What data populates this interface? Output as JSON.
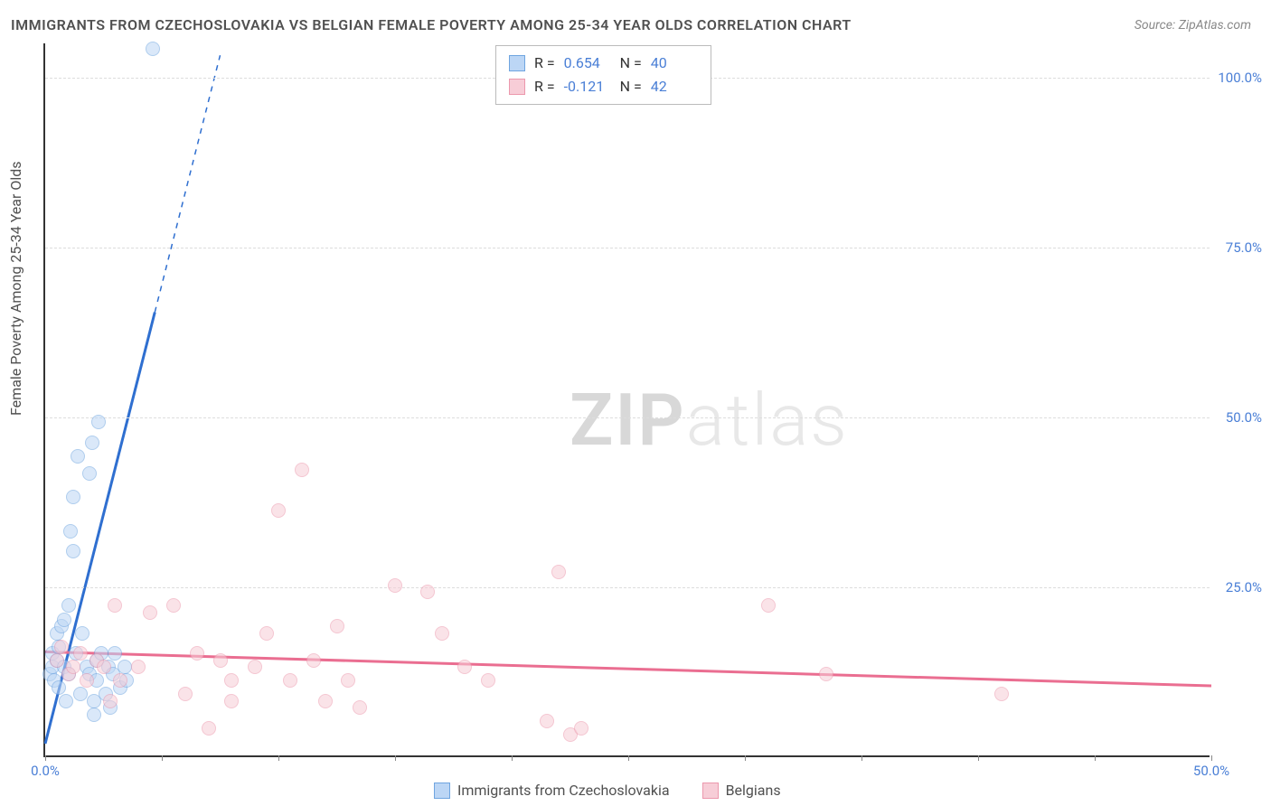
{
  "title": "IMMIGRANTS FROM CZECHOSLOVAKIA VS BELGIAN FEMALE POVERTY AMONG 25-34 YEAR OLDS CORRELATION CHART",
  "source": "Source: ZipAtlas.com",
  "y_axis_label": "Female Poverty Among 25-34 Year Olds",
  "watermark": {
    "bold": "ZIP",
    "rest": "atlas"
  },
  "chart": {
    "type": "scatter",
    "xlim": [
      0,
      50
    ],
    "ylim": [
      0,
      105
    ],
    "x_ticks": [
      0,
      5,
      10,
      15,
      20,
      25,
      30,
      35,
      40,
      45,
      50
    ],
    "x_tick_labels": {
      "0": "0.0%",
      "50": "50.0%"
    },
    "y_ticks": [
      25,
      50,
      75,
      100
    ],
    "y_tick_labels": [
      "25.0%",
      "50.0%",
      "75.0%",
      "100.0%"
    ],
    "grid_color": "#dddddd",
    "axis_color": "#333333",
    "background_color": "#ffffff",
    "tick_label_color": "#4a7fd6",
    "tick_fontsize": 15,
    "title_fontsize": 16,
    "label_fontsize": 16,
    "marker_radius": 8,
    "marker_opacity": 0.55,
    "series": [
      {
        "name": "Immigrants from Czechoslovakia",
        "color_fill": "#bcd6f5",
        "color_stroke": "#6fa5e0",
        "trend": {
          "slope": 13.5,
          "intercept": 2.0,
          "solid_xmax": 4.7,
          "dash_xmax": 7.5,
          "line_width": 3,
          "color": "#2f6fd0"
        },
        "points": [
          [
            0.2,
            12
          ],
          [
            0.3,
            13
          ],
          [
            0.3,
            15
          ],
          [
            0.4,
            11
          ],
          [
            0.5,
            14
          ],
          [
            0.5,
            18
          ],
          [
            0.6,
            10
          ],
          [
            0.6,
            16
          ],
          [
            0.7,
            19
          ],
          [
            0.8,
            13
          ],
          [
            0.8,
            20
          ],
          [
            0.9,
            8
          ],
          [
            1.0,
            22
          ],
          [
            1.0,
            12
          ],
          [
            1.1,
            33
          ],
          [
            1.2,
            30
          ],
          [
            1.2,
            38
          ],
          [
            1.3,
            15
          ],
          [
            1.4,
            44
          ],
          [
            1.5,
            9
          ],
          [
            1.6,
            18
          ],
          [
            1.8,
            13
          ],
          [
            1.9,
            41.5
          ],
          [
            1.9,
            12
          ],
          [
            2.0,
            46
          ],
          [
            2.1,
            8
          ],
          [
            2.1,
            6
          ],
          [
            2.2,
            14
          ],
          [
            2.2,
            11
          ],
          [
            2.3,
            49
          ],
          [
            2.4,
            15
          ],
          [
            2.6,
            9
          ],
          [
            2.7,
            13
          ],
          [
            2.8,
            7
          ],
          [
            2.9,
            12
          ],
          [
            3.0,
            15
          ],
          [
            3.2,
            10
          ],
          [
            3.4,
            13
          ],
          [
            3.5,
            11
          ],
          [
            4.6,
            104
          ]
        ]
      },
      {
        "name": "Belgians",
        "color_fill": "#f7cdd7",
        "color_stroke": "#ec98ad",
        "trend": {
          "slope": -0.1,
          "intercept": 15.5,
          "solid_xmax": 50,
          "dash_xmax": 50,
          "line_width": 3,
          "color": "#ea6e91"
        },
        "points": [
          [
            0.5,
            14
          ],
          [
            0.7,
            16
          ],
          [
            1.0,
            12
          ],
          [
            1.2,
            13
          ],
          [
            1.5,
            15
          ],
          [
            1.8,
            11
          ],
          [
            2.2,
            14
          ],
          [
            2.5,
            13
          ],
          [
            2.8,
            8
          ],
          [
            3.0,
            22
          ],
          [
            3.2,
            11
          ],
          [
            4.0,
            13
          ],
          [
            4.5,
            21
          ],
          [
            5.5,
            22
          ],
          [
            6.0,
            9
          ],
          [
            6.5,
            15
          ],
          [
            7.0,
            4
          ],
          [
            7.5,
            14
          ],
          [
            8.0,
            11
          ],
          [
            8.0,
            8
          ],
          [
            9.0,
            13
          ],
          [
            9.5,
            18
          ],
          [
            10.0,
            36
          ],
          [
            10.5,
            11
          ],
          [
            11.0,
            42
          ],
          [
            11.5,
            14
          ],
          [
            12.0,
            8
          ],
          [
            12.5,
            19
          ],
          [
            13.0,
            11
          ],
          [
            13.5,
            7
          ],
          [
            15.0,
            25
          ],
          [
            16.4,
            24
          ],
          [
            17.0,
            18
          ],
          [
            18.0,
            13
          ],
          [
            19.0,
            11
          ],
          [
            21.5,
            5
          ],
          [
            22.0,
            27
          ],
          [
            22.5,
            3
          ],
          [
            23.0,
            4
          ],
          [
            31.0,
            22
          ],
          [
            33.5,
            12
          ],
          [
            41.0,
            9
          ]
        ]
      }
    ]
  },
  "stats": [
    {
      "swatch_fill": "#bcd6f5",
      "swatch_stroke": "#6fa5e0",
      "r_label": "R =",
      "r_value": "0.654",
      "n_label": "N =",
      "n_value": "40"
    },
    {
      "swatch_fill": "#f7cdd7",
      "swatch_stroke": "#ec98ad",
      "r_label": "R =",
      "r_value": "-0.121",
      "n_label": "N =",
      "n_value": "42"
    }
  ],
  "legend": [
    {
      "swatch_fill": "#bcd6f5",
      "swatch_stroke": "#6fa5e0",
      "label": "Immigrants from Czechoslovakia"
    },
    {
      "swatch_fill": "#f7cdd7",
      "swatch_stroke": "#ec98ad",
      "label": "Belgians"
    }
  ]
}
